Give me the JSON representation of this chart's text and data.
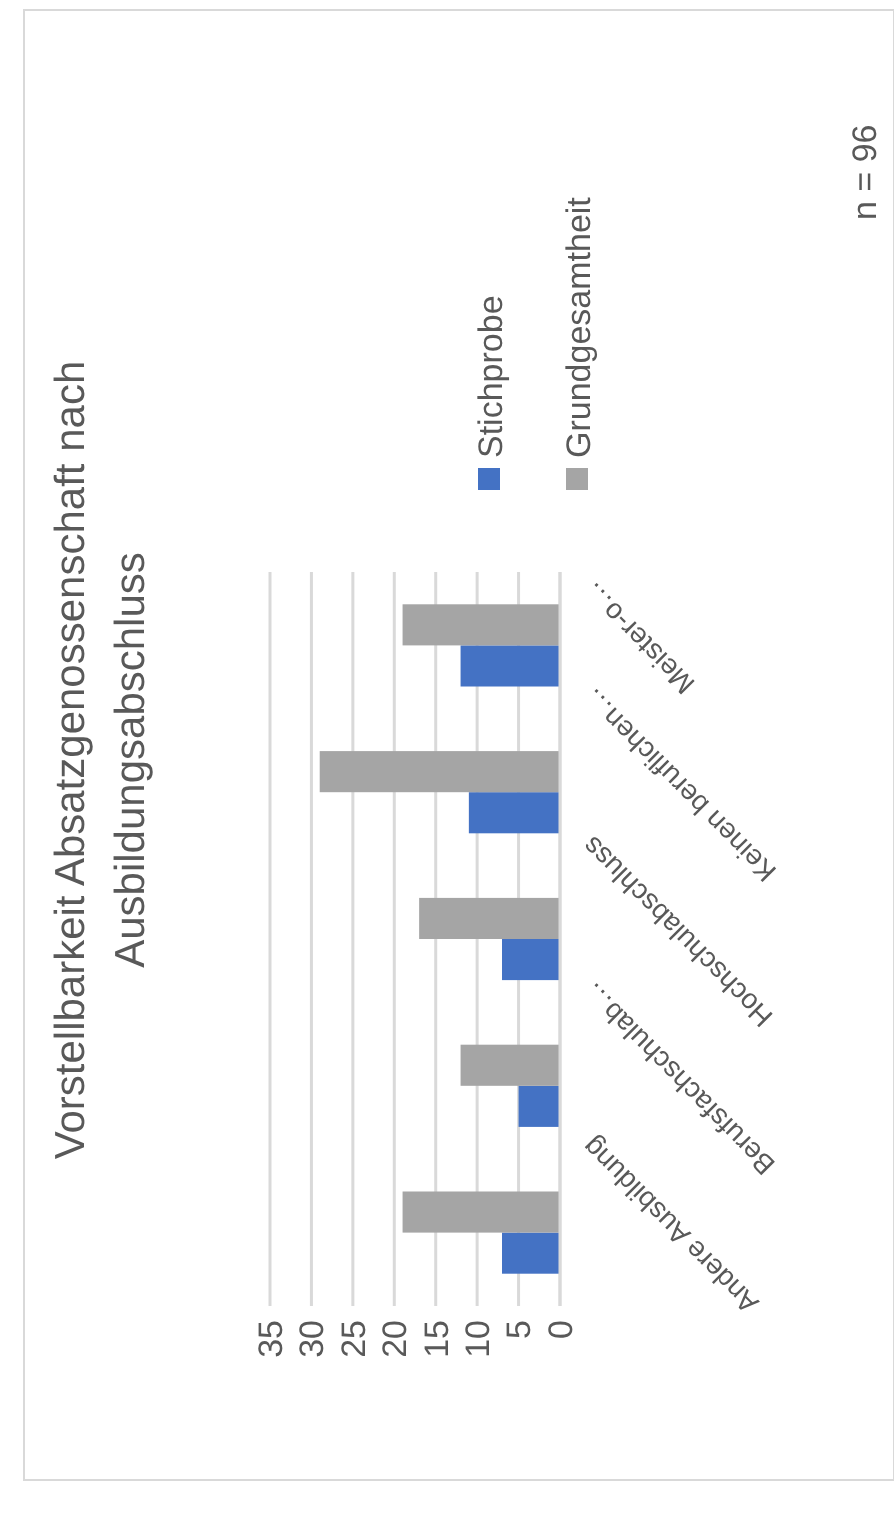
{
  "chart_data": {
    "type": "bar",
    "orientation": "horizontal",
    "title": "Vorstellbarkeit Absatzgenossenschaft nach Ausbildungsabschluss",
    "categories": [
      "Meister-o…",
      "Keinen beruflichen…",
      "Hochschulabschluss",
      "Berufsfachschulab…",
      "Andere Ausbildung"
    ],
    "series": [
      {
        "name": "Stichprobe",
        "color": "#4472c4",
        "values": [
          12,
          11,
          7,
          5,
          7
        ]
      },
      {
        "name": "Grundgesamtheit",
        "color": "#a5a5a5",
        "values": [
          19,
          29,
          17,
          12,
          19
        ]
      }
    ],
    "xlim": [
      35,
      0
    ],
    "xticks": [
      0,
      5,
      10,
      15,
      20,
      25,
      30,
      35
    ],
    "grid": "x",
    "legend": "top",
    "annotations": [
      "n = 96"
    ]
  }
}
